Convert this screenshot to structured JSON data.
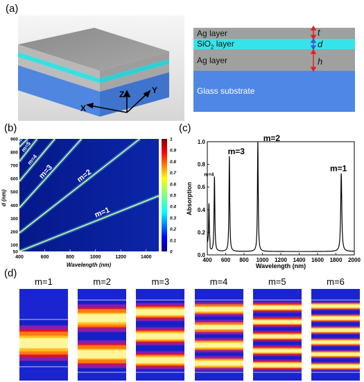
{
  "panels": {
    "a": "(a)",
    "b": "(b)",
    "c": "(c)",
    "d": "(d)"
  },
  "panel_a": {
    "axes": {
      "x": "X",
      "y": "Y",
      "z": "Z"
    },
    "layers": [
      {
        "label_main": "Ag layer",
        "label_sub": "",
        "label_tail": "",
        "var": "t",
        "color": "#a0a0a0"
      },
      {
        "label_main": "SiO",
        "label_sub": "2",
        "label_tail": " layer",
        "var": "d",
        "color": "#35e4e8"
      },
      {
        "label_main": "Ag layer",
        "label_sub": "",
        "label_tail": "",
        "var": "h",
        "color": "#a0a0a0"
      },
      {
        "label_main": "Glass substrate",
        "label_sub": "",
        "label_tail": "",
        "var": "",
        "color": "#4e87e6"
      }
    ]
  },
  "chart_data": [
    {
      "panel": "(b)",
      "type": "heatmap",
      "xlabel": "Wavelength (nm)",
      "ylabel": "d (nm)",
      "xlim": [
        400,
        1500
      ],
      "ylim": [
        50,
        900
      ],
      "xticks": [
        400,
        600,
        800,
        1000,
        1200,
        1400
      ],
      "yticks": [
        50,
        100,
        200,
        300,
        400,
        500,
        600,
        700,
        800,
        900
      ],
      "colorbar": {
        "ticks": [
          "0",
          "0.1",
          "0.2",
          "0.3",
          "0.4",
          "0.5",
          "0.6",
          "0.7",
          "0.8",
          "0.9",
          "1"
        ],
        "min": 0,
        "max": 1
      },
      "series": [
        {
          "name": "m=1",
          "points": [
            [
              400,
              50
            ],
            [
              1500,
              470
            ]
          ]
        },
        {
          "name": "m=2",
          "points": [
            [
              400,
              190
            ],
            [
              1350,
              900
            ]
          ]
        },
        {
          "name": "m=3",
          "points": [
            [
              400,
              380
            ],
            [
              890,
              900
            ]
          ]
        },
        {
          "name": "m=4",
          "points": [
            [
              400,
              580
            ],
            [
              680,
              900
            ]
          ]
        },
        {
          "name": "m=5",
          "points": [
            [
              400,
              730
            ],
            [
              540,
              900
            ]
          ]
        },
        {
          "name": "m=6",
          "points": [
            [
              400,
              840
            ],
            [
              465,
              900
            ]
          ]
        }
      ]
    },
    {
      "panel": "(c)",
      "type": "line",
      "xlabel": "Wavelength (nm)",
      "ylabel": "Absorption",
      "xlim": [
        400,
        2000
      ],
      "ylim": [
        0,
        1.0
      ],
      "xticks": [
        400,
        600,
        800,
        1000,
        1200,
        1400,
        1600,
        1800,
        2000
      ],
      "yticks": [
        0.0,
        0.2,
        0.4,
        0.6,
        0.8,
        1.0
      ],
      "ytick_labels": [
        "0.0",
        "0.2",
        "0.4",
        "0.6",
        "0.8",
        "1.0"
      ],
      "peaks": [
        {
          "label": "m=4",
          "x": 478,
          "y": 0.66
        },
        {
          "label": "m=3",
          "x": 640,
          "y": 0.84
        },
        {
          "label": "m=2",
          "x": 950,
          "y": 0.97
        },
        {
          "label": "m=1",
          "x": 1858,
          "y": 0.69
        }
      ],
      "extra_peaks": [
        {
          "x": 418,
          "y": 0.36
        }
      ]
    }
  ],
  "panel_d": {
    "modes": [
      {
        "label": "m=1",
        "bands": 1
      },
      {
        "label": "m=2",
        "bands": 2
      },
      {
        "label": "m=3",
        "bands": 3
      },
      {
        "label": "m=4",
        "bands": 4
      },
      {
        "label": "m=5",
        "bands": 5
      },
      {
        "label": "m=6",
        "bands": 6
      }
    ]
  }
}
